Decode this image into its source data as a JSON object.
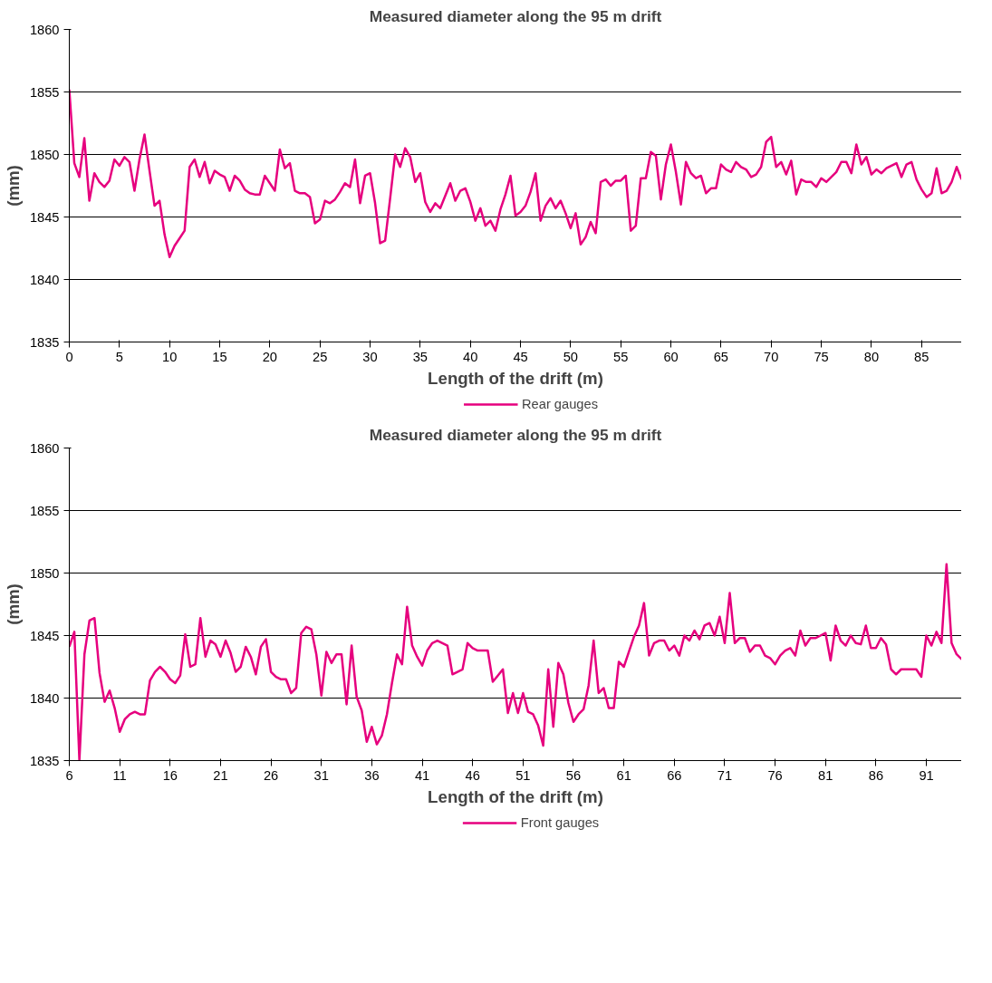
{
  "chart_data": [
    {
      "type": "line",
      "title": "Measured diameter along the 95 m drift",
      "xlabel": "Length of the drift (m)",
      "ylabel": "(mm)",
      "x": [
        0,
        0.5,
        1,
        1.5,
        2,
        2.5,
        3,
        3.5,
        4,
        4.5,
        5,
        5.5,
        6,
        6.5,
        7,
        7.5,
        8,
        8.5,
        9,
        9.5,
        10,
        10.5,
        11,
        11.5,
        12,
        12.5,
        13,
        13.5,
        14,
        14.5,
        15,
        15.5,
        16,
        16.5,
        17,
        17.5,
        18,
        18.5,
        19,
        19.5,
        20,
        20.5,
        21,
        21.5,
        22,
        22.5,
        23,
        23.5,
        24,
        24.5,
        25,
        25.5,
        26,
        26.5,
        27,
        27.5,
        28,
        28.5,
        29,
        29.5,
        30,
        30.5,
        31,
        31.5,
        32,
        32.5,
        33,
        33.5,
        34,
        34.5,
        35,
        35.5,
        36,
        36.5,
        37,
        37.5,
        38,
        38.5,
        39,
        39.5,
        40,
        40.5,
        41,
        41.5,
        42,
        42.5,
        43,
        43.5,
        44,
        44.5,
        45,
        45.5,
        46,
        46.5,
        47,
        47.5,
        48,
        48.5,
        49,
        49.5,
        50,
        50.5,
        51,
        51.5,
        52,
        52.5,
        53,
        53.5,
        54,
        54.5,
        55,
        55.5,
        56,
        56.5,
        57,
        57.5,
        58,
        58.5,
        59,
        59.5,
        60,
        60.5,
        61,
        61.5,
        62,
        62.5,
        63,
        63.5,
        64,
        64.5,
        65,
        65.5,
        66,
        66.5,
        67,
        67.5,
        68,
        68.5,
        69,
        69.5,
        70,
        70.5,
        71,
        71.5,
        72,
        72.5,
        73,
        73.5,
        74,
        74.5,
        75,
        75.5,
        76,
        76.5,
        77,
        77.5,
        78,
        78.5,
        79,
        79.5,
        80,
        80.5,
        81,
        81.5,
        82,
        82.5,
        83,
        83.5,
        84,
        84.5,
        85,
        85.5,
        86,
        86.5,
        87,
        87.5,
        88,
        88.5,
        89
      ],
      "series": [
        {
          "name": "Rear gauges",
          "color": "#e6007e",
          "values": [
            1855.2,
            1849.3,
            1848.2,
            1851.3,
            1846.3,
            1848.5,
            1847.8,
            1847.4,
            1847.9,
            1849.6,
            1849.1,
            1849.8,
            1849.4,
            1847.1,
            1849.6,
            1851.6,
            1848.7,
            1845.9,
            1846.3,
            1843.6,
            1841.8,
            1842.7,
            1843.3,
            1843.9,
            1849.0,
            1849.6,
            1848.2,
            1849.4,
            1847.7,
            1848.7,
            1848.4,
            1848.2,
            1847.1,
            1848.3,
            1847.9,
            1847.2,
            1846.9,
            1846.8,
            1846.8,
            1848.3,
            1847.7,
            1847.1,
            1850.4,
            1848.9,
            1849.3,
            1847.1,
            1846.9,
            1846.9,
            1846.6,
            1844.5,
            1844.8,
            1846.3,
            1846.1,
            1846.4,
            1847.0,
            1847.7,
            1847.4,
            1849.6,
            1846.1,
            1848.3,
            1848.5,
            1846.1,
            1842.9,
            1843.1,
            1846.5,
            1850.0,
            1849.0,
            1850.5,
            1849.8,
            1847.8,
            1848.5,
            1846.2,
            1845.4,
            1846.1,
            1845.7,
            1846.7,
            1847.7,
            1846.3,
            1847.1,
            1847.3,
            1846.2,
            1844.7,
            1845.7,
            1844.3,
            1844.7,
            1843.9,
            1845.6,
            1846.8,
            1848.3,
            1845.1,
            1845.4,
            1845.9,
            1847.0,
            1848.5,
            1844.7,
            1845.9,
            1846.5,
            1845.7,
            1846.3,
            1845.3,
            1844.1,
            1845.3,
            1842.8,
            1843.4,
            1844.6,
            1843.7,
            1847.8,
            1848.0,
            1847.5,
            1847.9,
            1847.9,
            1848.3,
            1843.9,
            1844.3,
            1848.1,
            1848.1,
            1850.2,
            1849.9,
            1846.4,
            1849.2,
            1850.8,
            1848.6,
            1846.0,
            1849.4,
            1848.5,
            1848.1,
            1848.3,
            1846.9,
            1847.3,
            1847.3,
            1849.2,
            1848.8,
            1848.6,
            1849.4,
            1849.0,
            1848.8,
            1848.2,
            1848.4,
            1849.0,
            1851.0,
            1851.4,
            1849.0,
            1849.4,
            1848.4,
            1849.5,
            1846.8,
            1848.0,
            1847.8,
            1847.8,
            1847.4,
            1848.1,
            1847.8,
            1848.2,
            1848.6,
            1849.4,
            1849.4,
            1848.5,
            1850.8,
            1849.2,
            1849.8,
            1848.4,
            1848.8,
            1848.5,
            1848.9,
            1849.1,
            1849.3,
            1848.2,
            1849.2,
            1849.4,
            1848.0,
            1847.2,
            1846.6,
            1846.9,
            1848.9,
            1846.9,
            1847.1,
            1847.8,
            1849.0,
            1848.0
          ]
        }
      ],
      "xlim": [
        0,
        89
      ],
      "xticks": [
        0,
        5,
        10,
        15,
        20,
        25,
        30,
        35,
        40,
        45,
        50,
        55,
        60,
        65,
        70,
        75,
        80,
        85
      ],
      "ylim": [
        1835,
        1860
      ],
      "yticks": [
        1835,
        1840,
        1845,
        1850,
        1855,
        1860
      ],
      "grid": "y",
      "legend": "bottom",
      "marker": "none",
      "line_style": "solid"
    },
    {
      "type": "line",
      "title": "Measured diameter along the 95 m drift",
      "xlabel": "Length of the drift (m)",
      "ylabel": "(mm)",
      "x": [
        6,
        6.5,
        7,
        7.5,
        8,
        8.5,
        9,
        9.5,
        10,
        10.5,
        11,
        11.5,
        12,
        12.5,
        13,
        13.5,
        14,
        14.5,
        15,
        15.5,
        16,
        16.5,
        17,
        17.5,
        18,
        18.5,
        19,
        19.5,
        20,
        20.5,
        21,
        21.5,
        22,
        22.5,
        23,
        23.5,
        24,
        24.5,
        25,
        25.5,
        26,
        26.5,
        27,
        27.5,
        28,
        28.5,
        29,
        29.5,
        30,
        30.5,
        31,
        31.5,
        32,
        32.5,
        33,
        33.5,
        34,
        34.5,
        35,
        35.5,
        36,
        36.5,
        37,
        37.5,
        38,
        38.5,
        39,
        39.5,
        40,
        40.5,
        41,
        41.5,
        42,
        42.5,
        43,
        43.5,
        44,
        44.5,
        45,
        45.5,
        46,
        46.5,
        47,
        47.5,
        48,
        48.5,
        49,
        49.5,
        50,
        50.5,
        51,
        51.5,
        52,
        52.5,
        53,
        53.5,
        54,
        54.5,
        55,
        55.5,
        56,
        56.5,
        57,
        57.5,
        58,
        58.5,
        59,
        59.5,
        60,
        60.5,
        61,
        61.5,
        62,
        62.5,
        63,
        63.5,
        64,
        64.5,
        65,
        65.5,
        66,
        66.5,
        67,
        67.5,
        68,
        68.5,
        69,
        69.5,
        70,
        70.5,
        71,
        71.5,
        72,
        72.5,
        73,
        73.5,
        74,
        74.5,
        75,
        75.5,
        76,
        76.5,
        77,
        77.5,
        78,
        78.5,
        79,
        79.5,
        80,
        80.5,
        81,
        81.5,
        82,
        82.5,
        83,
        83.5,
        84,
        84.5,
        85,
        85.5,
        86,
        86.5,
        87,
        87.5,
        88,
        88.5,
        89,
        89.5,
        90,
        90.5,
        91,
        91.5,
        92,
        92.5,
        93,
        93.5,
        94,
        94.5
      ],
      "series": [
        {
          "name": "Front gauges",
          "color": "#e6007e",
          "values": [
            1844.1,
            1845.3,
            1835.0,
            1843.5,
            1846.2,
            1846.4,
            1842.0,
            1839.7,
            1840.6,
            1839.2,
            1837.3,
            1838.3,
            1838.7,
            1838.9,
            1838.7,
            1838.7,
            1841.4,
            1842.1,
            1842.5,
            1842.1,
            1841.5,
            1841.2,
            1841.8,
            1845.1,
            1842.5,
            1842.7,
            1846.4,
            1843.3,
            1844.6,
            1844.3,
            1843.3,
            1844.6,
            1843.6,
            1842.1,
            1842.5,
            1844.1,
            1843.3,
            1841.9,
            1844.1,
            1844.7,
            1842.1,
            1841.7,
            1841.5,
            1841.5,
            1840.4,
            1840.8,
            1845.2,
            1845.7,
            1845.5,
            1843.5,
            1840.2,
            1843.7,
            1842.8,
            1843.5,
            1843.5,
            1839.5,
            1844.2,
            1840.1,
            1839.0,
            1836.5,
            1837.7,
            1836.3,
            1837.0,
            1838.7,
            1841.2,
            1843.5,
            1842.7,
            1847.3,
            1844.2,
            1843.3,
            1842.6,
            1843.8,
            1844.4,
            1844.6,
            1844.4,
            1844.2,
            1841.9,
            1842.1,
            1842.3,
            1844.4,
            1844.0,
            1843.8,
            1843.8,
            1843.8,
            1841.3,
            1841.8,
            1842.3,
            1838.8,
            1840.4,
            1838.8,
            1840.4,
            1838.9,
            1838.7,
            1837.8,
            1836.2,
            1842.3,
            1837.7,
            1842.8,
            1841.9,
            1839.6,
            1838.1,
            1838.7,
            1839.1,
            1841.0,
            1844.6,
            1840.4,
            1840.8,
            1839.2,
            1839.2,
            1842.9,
            1842.5,
            1843.7,
            1844.9,
            1845.8,
            1847.6,
            1843.4,
            1844.4,
            1844.6,
            1844.6,
            1843.8,
            1844.2,
            1843.4,
            1845.0,
            1844.6,
            1845.4,
            1844.7,
            1845.8,
            1846.0,
            1845.0,
            1846.5,
            1844.4,
            1848.4,
            1844.4,
            1844.8,
            1844.8,
            1843.7,
            1844.2,
            1844.2,
            1843.4,
            1843.2,
            1842.7,
            1843.4,
            1843.8,
            1844.0,
            1843.4,
            1845.4,
            1844.2,
            1844.8,
            1844.8,
            1845.0,
            1845.2,
            1843.0,
            1845.8,
            1844.6,
            1844.2,
            1845.0,
            1844.4,
            1844.3,
            1845.8,
            1844.0,
            1844.0,
            1844.8,
            1844.3,
            1842.3,
            1841.9,
            1842.3,
            1842.3,
            1842.3,
            1842.3,
            1841.7,
            1845.0,
            1844.2,
            1845.3,
            1844.4,
            1850.7,
            1844.4,
            1843.5,
            1843.1
          ]
        }
      ],
      "xlim": [
        6,
        94.5
      ],
      "xticks": [
        6,
        11,
        16,
        21,
        26,
        31,
        36,
        41,
        46,
        51,
        56,
        61,
        66,
        71,
        76,
        81,
        86,
        91
      ],
      "ylim": [
        1835,
        1860
      ],
      "yticks": [
        1835,
        1840,
        1845,
        1850,
        1855,
        1860
      ],
      "grid": "y",
      "legend": "bottom",
      "marker": "none",
      "line_style": "solid"
    }
  ]
}
